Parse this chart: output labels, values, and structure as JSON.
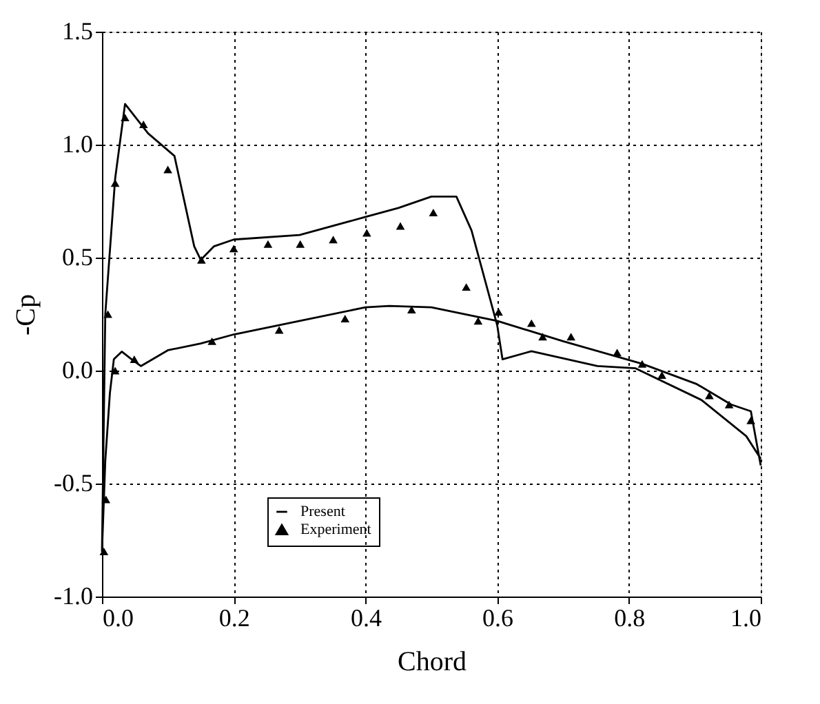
{
  "chart_data": {
    "type": "line",
    "xlabel": "Chord",
    "ylabel": "-Cp",
    "xlim": [
      0,
      1.0
    ],
    "xticks": [
      {
        "value": 0,
        "label": "0.0"
      },
      0.2,
      0.4,
      0.6,
      0.8,
      {
        "value": 1,
        "label": "1.0"
      }
    ],
    "ylim": [
      -1.0,
      1.5
    ],
    "yticks": [
      {
        "value": -1,
        "label": "-1.0"
      },
      -0.5,
      {
        "value": 0,
        "label": "0.0"
      },
      0.5,
      {
        "value": 1,
        "label": "1.0"
      },
      1.5
    ],
    "grid": true,
    "legend": "bottom",
    "series": [
      {
        "name": "Present",
        "type": "line",
        "color": "#000000",
        "marker": "none",
        "line_style": "solid",
        "x": [
          1.0,
          0.978,
          0.91,
          0.81,
          0.752,
          0.652,
          0.608,
          0.6,
          0.561,
          0.538,
          0.5,
          0.45,
          0.4,
          0.3,
          0.2,
          0.17,
          0.15,
          0.14,
          0.11,
          0.07,
          0.035,
          0.02,
          0.005,
          0.0,
          0.005,
          0.012,
          0.018,
          0.03,
          0.045,
          0.059,
          0.1,
          0.15,
          0.2,
          0.3,
          0.4,
          0.436,
          0.5,
          0.6,
          0.7,
          0.82,
          0.903,
          0.955,
          0.985,
          1.0
        ],
        "values": [
          -0.39,
          -0.29,
          -0.13,
          0.01,
          0.02,
          0.086,
          0.05,
          0.2,
          0.62,
          0.77,
          0.77,
          0.72,
          0.68,
          0.6,
          0.58,
          0.55,
          0.49,
          0.55,
          0.95,
          1.05,
          1.18,
          0.85,
          0.25,
          -0.8,
          -0.4,
          -0.1,
          0.05,
          0.084,
          0.05,
          0.02,
          0.09,
          0.12,
          0.16,
          0.22,
          0.28,
          0.286,
          0.28,
          0.22,
          0.13,
          0.03,
          -0.06,
          -0.15,
          -0.18,
          -0.42
        ]
      },
      {
        "name": "Experiment",
        "type": "scatter",
        "color": "#000000",
        "marker": "triangle",
        "x": [
          0.003,
          0.006,
          0.009,
          0.02,
          0.02,
          0.035,
          0.049,
          0.063,
          0.1,
          0.151,
          0.167,
          0.2,
          0.252,
          0.269,
          0.301,
          0.351,
          0.369,
          0.402,
          0.453,
          0.47,
          0.503,
          0.553,
          0.571,
          0.602,
          0.652,
          0.669,
          0.712,
          0.782,
          0.82,
          0.85,
          0.922,
          0.952,
          0.985
        ],
        "values": [
          -0.8,
          -0.57,
          0.25,
          0.83,
          0.0,
          1.12,
          0.05,
          1.09,
          0.89,
          0.49,
          0.13,
          0.54,
          0.56,
          0.18,
          0.56,
          0.58,
          0.23,
          0.61,
          0.64,
          0.27,
          0.7,
          0.37,
          0.22,
          0.26,
          0.21,
          0.15,
          0.15,
          0.08,
          0.03,
          -0.02,
          -0.11,
          -0.15,
          -0.22
        ]
      }
    ]
  }
}
